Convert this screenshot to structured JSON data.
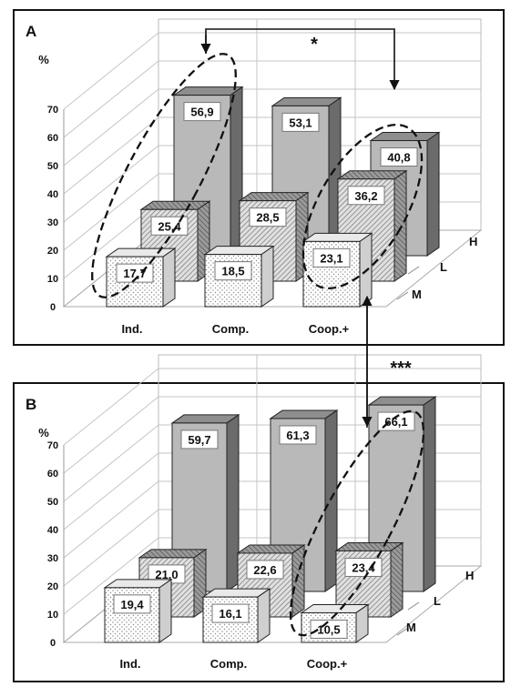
{
  "chart_data": [
    {
      "type": "bar",
      "panel_label": "A",
      "ylabel": "%",
      "categories": [
        "Ind.",
        "Comp.",
        "Coop.+"
      ],
      "depth_categories": [
        "M",
        "L",
        "H"
      ],
      "series": [
        {
          "name": "M",
          "values": [
            17.7,
            18.5,
            23.1
          ],
          "labels": [
            "17,7",
            "18,5",
            "23,1"
          ]
        },
        {
          "name": "L",
          "values": [
            25.4,
            28.5,
            36.2
          ],
          "labels": [
            "25,4",
            "28,5",
            "36,2"
          ]
        },
        {
          "name": "H",
          "values": [
            56.9,
            53.1,
            40.8
          ],
          "labels": [
            "56,9",
            "53,1",
            "40,8"
          ]
        }
      ],
      "ylim": [
        0,
        70
      ],
      "yticks": [
        "0",
        "10",
        "20",
        "30",
        "40",
        "50",
        "60",
        "70"
      ],
      "grid": true,
      "annotation": "*"
    },
    {
      "type": "bar",
      "panel_label": "B",
      "ylabel": "%",
      "categories": [
        "Ind.",
        "Comp.",
        "Coop.+"
      ],
      "depth_categories": [
        "M",
        "L",
        "H"
      ],
      "series": [
        {
          "name": "M",
          "values": [
            19.4,
            16.1,
            10.5
          ],
          "labels": [
            "19,4",
            "16,1",
            "10,5"
          ]
        },
        {
          "name": "L",
          "values": [
            21.0,
            22.6,
            23.4
          ],
          "labels": [
            "21,0",
            "22,6",
            "23,4"
          ]
        },
        {
          "name": "H",
          "values": [
            59.7,
            61.3,
            66.1
          ],
          "labels": [
            "59,7",
            "61,3",
            "66,1"
          ]
        }
      ],
      "ylim": [
        0,
        70
      ],
      "yticks": [
        "0",
        "10",
        "20",
        "30",
        "40",
        "50",
        "60",
        "70"
      ],
      "grid": true
    }
  ],
  "between_panels_annotation": "***"
}
